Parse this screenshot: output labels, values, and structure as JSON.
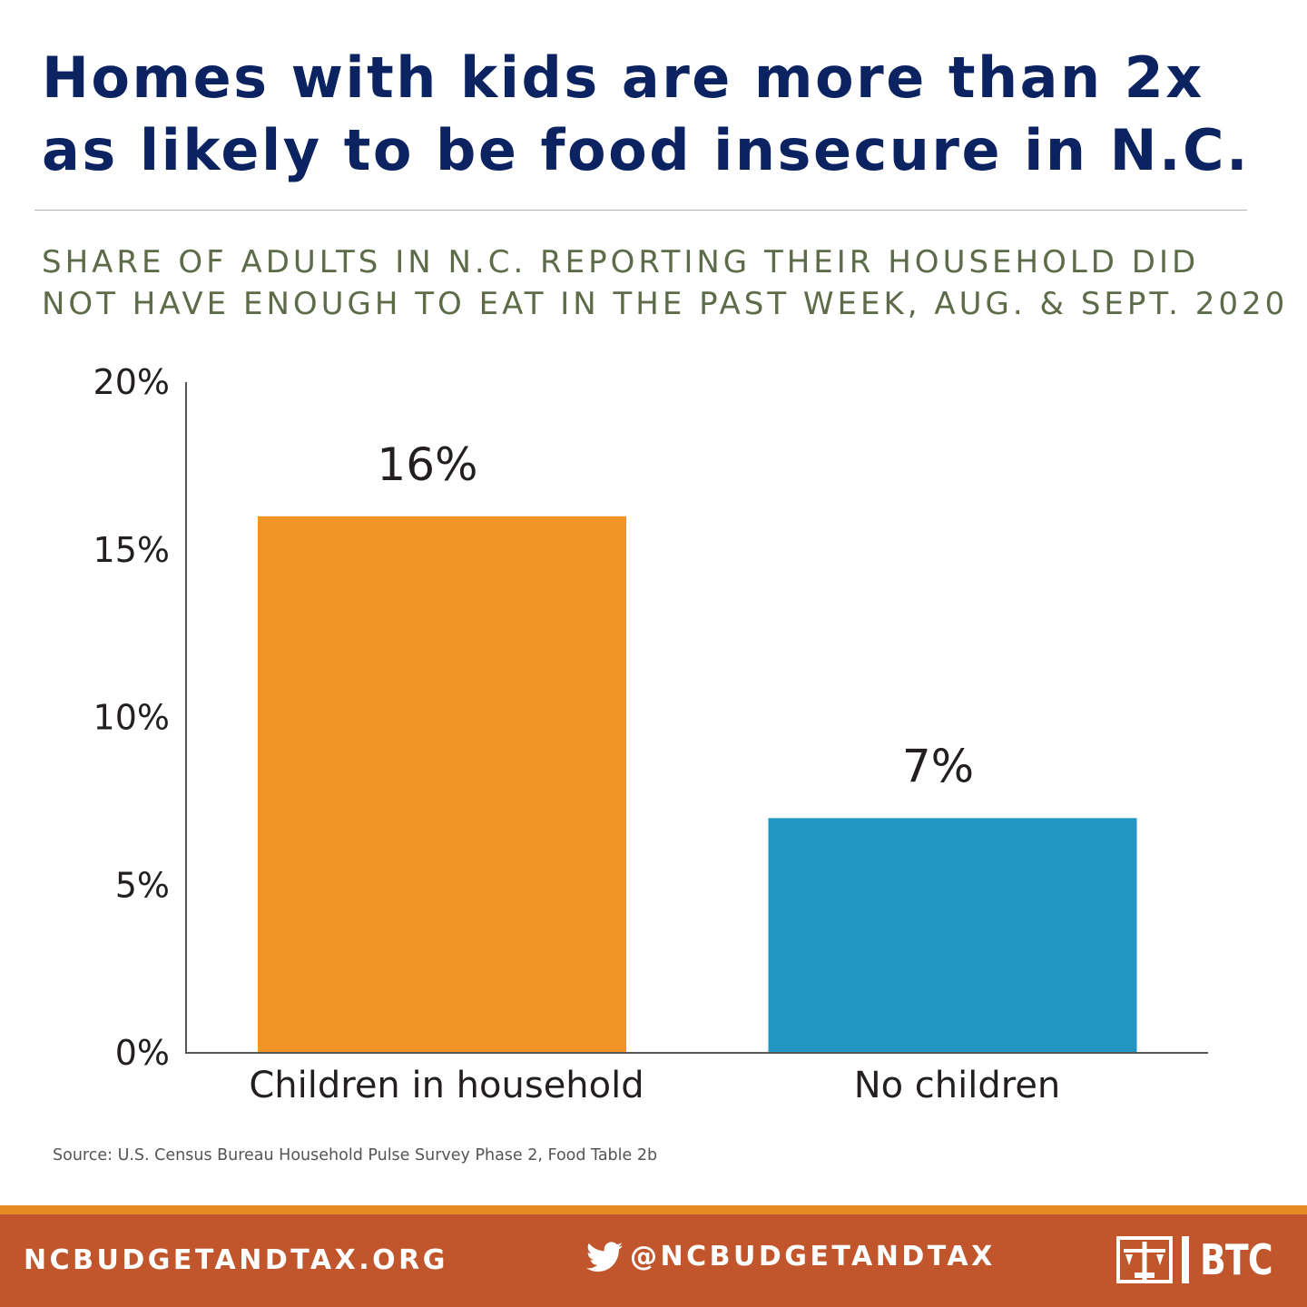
{
  "header": {
    "headline_line1": "Homes with kids are more than 2x",
    "headline_line2": "as likely to be food insecure in N.C.",
    "subtitle_line1": "SHARE OF ADULTS IN N.C. REPORTING THEIR HOUSEHOLD DID",
    "subtitle_line2": "NOT HAVE ENOUGH TO EAT IN THE PAST WEEK, AUG. & SEPT. 2020"
  },
  "chart_data": {
    "type": "bar",
    "categories": [
      "Children in household",
      "No children"
    ],
    "values": [
      16,
      7
    ],
    "value_labels": [
      "16%",
      "7%"
    ],
    "bar_colors": [
      "#f39426",
      "#2195c4"
    ],
    "ylim": [
      0,
      20
    ],
    "yticks": [
      0,
      5,
      10,
      15,
      20
    ],
    "ytick_labels": [
      "0%",
      "5%",
      "10%",
      "15%",
      "20%"
    ],
    "grid": false,
    "legend": "none"
  },
  "source": "Source: U.S. Census Bureau Household Pulse Survey Phase 2, Food Table 2b",
  "footer": {
    "url": "NCBUDGETANDTAX.ORG",
    "handle": "@NCBUDGETANDTAX",
    "logo_text": "BTC",
    "colors": {
      "band": "#c1562c",
      "stripe": "#e58a25"
    },
    "icons": [
      "twitter-icon",
      "btc-logo-icon"
    ]
  },
  "colors": {
    "headline": "#0b2461",
    "subtitle": "#5e6b48"
  }
}
